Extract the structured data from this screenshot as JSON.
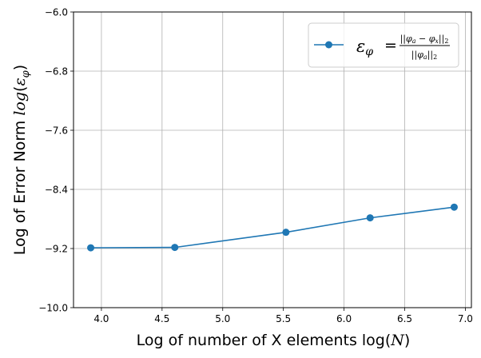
{
  "chart_data": {
    "type": "line",
    "xlabel": "Log of number of X elements log(N)",
    "ylabel": "Log of Error Norm log(ε_φ)",
    "xlim": [
      3.77,
      7.05
    ],
    "ylim": [
      -10.0,
      -6.0
    ],
    "grid": true,
    "legend_position": "top-right",
    "x_ticks": [
      4.0,
      4.5,
      5.0,
      5.5,
      6.0,
      6.5,
      7.0
    ],
    "x_tick_labels": [
      "4.0",
      "4.5",
      "5.0",
      "5.5",
      "6.0",
      "6.5",
      "7.0"
    ],
    "y_ticks": [
      -10.0,
      -9.2,
      -8.4,
      -7.6,
      -6.8,
      -6.0
    ],
    "y_tick_labels": [
      "−10.0",
      "−9.2",
      "−8.4",
      "−7.6",
      "−6.8",
      "−6.0"
    ],
    "series": [
      {
        "name": "ε_φ = ||φ_a − φ_x||_2 / ||φ_a||_2",
        "color": "#1f77b4",
        "marker": "circle",
        "x": [
          3.912,
          4.605,
          5.521,
          6.215,
          6.908
        ],
        "y": [
          -9.19,
          -9.185,
          -8.98,
          -8.785,
          -8.64
        ]
      }
    ]
  },
  "legend": {
    "lhs_symbol": "ε",
    "lhs_sub": "φ",
    "equals": "=",
    "num_open": "||",
    "num_phi1": "φ",
    "num_sub1": "a",
    "num_minus": " − ",
    "num_phi2": "φ",
    "num_sub2": "x",
    "num_close": "||",
    "num_norm_sub": "2",
    "den_open": "||",
    "den_phi": "φ",
    "den_sub": "a",
    "den_close": "||",
    "den_norm_sub": "2"
  },
  "axis_text": {
    "xlabel_main": "Log of number of X elements log(",
    "xlabel_var": "N",
    "xlabel_close": ")",
    "ylabel_main": "Log of Error Norm ",
    "ylabel_func": "log",
    "ylabel_open": "(",
    "ylabel_eps": "ε",
    "ylabel_sub": "φ",
    "ylabel_close": ")"
  }
}
